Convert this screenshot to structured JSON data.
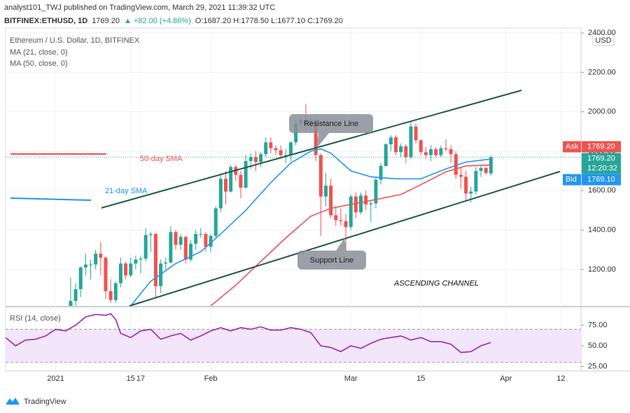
{
  "header": {
    "line1": "analyst101_TWJ published on TradingView.com, March 29, 2021 11:39:32 UTC",
    "symbol": "BITFINEX:ETHUSD, 1D",
    "last": "1769.20",
    "change": "▲ +82.00 (+4.86%)",
    "ohlc": "O:1687.20 H:1778.50 L:1677.10 C:1769.20"
  },
  "chart_data": [
    {
      "type": "candlestick",
      "title": "Ethereum / U.S. Dollar, 1D, BITFINEX",
      "currency": "USD",
      "up_color": "#26a69a",
      "down_color": "#ef5350",
      "x": [
        3,
        4,
        5,
        6,
        7,
        8,
        9,
        10,
        11,
        12,
        13,
        14,
        15,
        16,
        17,
        18,
        19,
        20,
        21,
        22,
        23,
        24,
        25,
        26,
        27,
        28,
        29,
        30,
        31,
        32,
        33,
        34,
        35,
        36,
        37,
        38,
        39,
        40,
        41,
        42,
        43,
        44,
        45,
        46,
        47,
        48,
        49,
        50,
        51,
        52,
        53,
        54,
        55,
        56,
        57,
        58,
        59,
        60,
        61,
        62,
        63,
        64,
        65,
        66,
        67,
        68,
        69,
        70,
        71,
        72,
        73,
        74,
        75,
        76,
        77,
        78,
        79,
        80,
        81,
        82,
        83,
        84,
        85,
        86,
        87
      ],
      "candles": [
        [
          1000,
          1160,
          950,
          1040
        ],
        [
          1040,
          1130,
          1000,
          1100
        ],
        [
          1100,
          1215,
          1060,
          1210
        ],
        [
          1210,
          1280,
          1170,
          1225
        ],
        [
          1225,
          1250,
          1150,
          1225
        ],
        [
          1225,
          1300,
          1200,
          1280
        ],
        [
          1280,
          1340,
          1170,
          1260
        ],
        [
          1260,
          1265,
          1050,
          1090
        ],
        [
          1090,
          1150,
          1030,
          1045
        ],
        [
          1045,
          1140,
          1030,
          1130
        ],
        [
          1130,
          1260,
          1110,
          1230
        ],
        [
          1230,
          1240,
          1150,
          1170
        ],
        [
          1170,
          1260,
          1160,
          1230
        ],
        [
          1230,
          1270,
          1200,
          1250
        ],
        [
          1250,
          1270,
          1180,
          1255
        ],
        [
          1255,
          1410,
          1240,
          1375
        ],
        [
          1375,
          1390,
          1290,
          1380
        ],
        [
          1380,
          1385,
          1060,
          1115
        ],
        [
          1115,
          1250,
          1080,
          1230
        ],
        [
          1230,
          1260,
          1200,
          1235
        ],
        [
          1235,
          1420,
          1230,
          1390
        ],
        [
          1390,
          1400,
          1300,
          1325
        ],
        [
          1325,
          1380,
          1300,
          1365
        ],
        [
          1365,
          1370,
          1230,
          1250
        ],
        [
          1250,
          1350,
          1240,
          1330
        ],
        [
          1330,
          1400,
          1300,
          1380
        ],
        [
          1380,
          1410,
          1360,
          1380
        ],
        [
          1380,
          1390,
          1290,
          1315
        ],
        [
          1315,
          1380,
          1290,
          1370
        ],
        [
          1370,
          1520,
          1360,
          1510
        ],
        [
          1510,
          1680,
          1490,
          1660
        ],
        [
          1660,
          1700,
          1530,
          1595
        ],
        [
          1595,
          1730,
          1590,
          1720
        ],
        [
          1720,
          1730,
          1650,
          1680
        ],
        [
          1680,
          1700,
          1560,
          1615
        ],
        [
          1615,
          1780,
          1610,
          1750
        ],
        [
          1750,
          1790,
          1710,
          1770
        ],
        [
          1770,
          1800,
          1700,
          1745
        ],
        [
          1745,
          1795,
          1720,
          1785
        ],
        [
          1785,
          1870,
          1770,
          1845
        ],
        [
          1845,
          1870,
          1790,
          1815
        ],
        [
          1815,
          1830,
          1780,
          1805
        ],
        [
          1805,
          1830,
          1760,
          1780
        ],
        [
          1780,
          1810,
          1740,
          1780
        ],
        [
          1780,
          1850,
          1750,
          1845
        ],
        [
          1845,
          1960,
          1830,
          1940
        ],
        [
          1940,
          1970,
          1920,
          1960
        ],
        [
          1960,
          2040,
          1900,
          1935
        ],
        [
          1935,
          1975,
          1900,
          1960
        ],
        [
          1960,
          1970,
          1750,
          1780
        ],
        [
          1780,
          1790,
          1370,
          1570
        ],
        [
          1570,
          1690,
          1520,
          1625
        ],
        [
          1625,
          1660,
          1460,
          1475
        ],
        [
          1475,
          1520,
          1420,
          1450
        ],
        [
          1450,
          1510,
          1420,
          1445
        ],
        [
          1445,
          1480,
          1300,
          1415
        ],
        [
          1415,
          1580,
          1400,
          1570
        ],
        [
          1570,
          1590,
          1460,
          1490
        ],
        [
          1490,
          1590,
          1480,
          1575
        ],
        [
          1575,
          1600,
          1500,
          1530
        ],
        [
          1530,
          1550,
          1440,
          1535
        ],
        [
          1535,
          1670,
          1510,
          1655
        ],
        [
          1655,
          1740,
          1630,
          1725
        ],
        [
          1725,
          1840,
          1720,
          1835
        ],
        [
          1835,
          1880,
          1800,
          1870
        ],
        [
          1870,
          1880,
          1780,
          1795
        ],
        [
          1795,
          1840,
          1770,
          1825
        ],
        [
          1825,
          1835,
          1740,
          1770
        ],
        [
          1770,
          1950,
          1760,
          1925
        ],
        [
          1925,
          1940,
          1840,
          1855
        ],
        [
          1855,
          1860,
          1780,
          1795
        ],
        [
          1795,
          1820,
          1760,
          1780
        ],
        [
          1780,
          1830,
          1750,
          1810
        ],
        [
          1810,
          1820,
          1770,
          1780
        ],
        [
          1780,
          1830,
          1770,
          1815
        ],
        [
          1815,
          1860,
          1800,
          1810
        ],
        [
          1810,
          1830,
          1740,
          1785
        ],
        [
          1785,
          1800,
          1660,
          1680
        ],
        [
          1680,
          1720,
          1610,
          1670
        ],
        [
          1670,
          1700,
          1550,
          1585
        ],
        [
          1585,
          1620,
          1540,
          1595
        ],
        [
          1595,
          1720,
          1580,
          1700
        ],
        [
          1700,
          1730,
          1670,
          1715
        ],
        [
          1715,
          1720,
          1680,
          1690
        ],
        [
          1687.2,
          1778.5,
          1677.1,
          1769.2
        ]
      ],
      "series": [
        {
          "name": "MA (21, close, 0)",
          "color": "#2196f3",
          "x": [
            15,
            19,
            24,
            29,
            33,
            38,
            43,
            47,
            51,
            53,
            55,
            59,
            63,
            68,
            73,
            78,
            82,
            87
          ],
          "values": [
            1015,
            1140,
            1230,
            1290,
            1380,
            1500,
            1640,
            1740,
            1800,
            1812,
            1790,
            1700,
            1670,
            1660,
            1660,
            1710,
            1745,
            1760
          ]
        },
        {
          "name": "MA (50, close, 0)",
          "color": "#ef5350",
          "x": [
            31,
            36,
            41,
            46,
            51,
            55,
            59,
            64,
            69,
            73,
            78,
            82,
            87
          ],
          "values": [
            1015,
            1120,
            1240,
            1360,
            1470,
            1510,
            1530,
            1555,
            1580,
            1630,
            1695,
            1725,
            1730
          ]
        }
      ],
      "xlim": [
        -10,
        105
      ],
      "ylim": [
        1015,
        2425
      ],
      "xticks": [
        {
          "value": 0,
          "label": "2021"
        },
        17,
        {
          "value": 31,
          "label": "Feb"
        },
        15,
        {
          "value": 59,
          "label": "Mar"
        },
        {
          "value": 73,
          "label": "15"
        },
        {
          "value": 90,
          "label": "Apr"
        },
        {
          "value": 101,
          "label": "12"
        }
      ],
      "yticks": [
        {
          "value": 1200,
          "label": "1200.00"
        },
        {
          "value": 1400,
          "label": "1400.00"
        },
        {
          "value": 1600,
          "label": "1600.00"
        },
        {
          "value": 1800,
          "label": "1800.00"
        },
        {
          "value": 2000,
          "label": "2000.00"
        },
        {
          "value": 2200,
          "label": "2200.00"
        },
        {
          "value": 2400,
          "label": "2400.00"
        }
      ],
      "grid": true,
      "price_labels": {
        "ask_name": "Ask",
        "ask": {
          "value": 1769.2,
          "label": "1769.20"
        },
        "last": {
          "value": 1769.2,
          "label": "1769.20"
        },
        "countdown": "12:20:32",
        "bid_name": "Bid",
        "bid": {
          "value": 1769.1,
          "label": "1769.10"
        }
      },
      "annotations": {
        "sma50": "50-day SMA",
        "sma21": "21-day SMA",
        "resistance": "Resistance Line",
        "support": "Support Line",
        "pattern": "ASCENDING CHANNEL"
      }
    },
    {
      "type": "line",
      "title": "RSI (14, close)",
      "color": "#9c27b0",
      "x": [
        -10,
        -8,
        -6,
        -4,
        -2,
        0,
        2,
        4,
        6,
        8,
        10,
        11,
        12,
        13,
        15,
        17,
        19,
        21,
        23,
        25,
        27,
        29,
        31,
        33,
        35,
        37,
        39,
        41,
        43,
        45,
        47,
        49,
        51,
        53,
        55,
        57,
        59,
        61,
        63,
        65,
        67,
        69,
        71,
        73,
        75,
        77,
        79,
        81,
        83,
        85,
        87
      ],
      "values": [
        60,
        50,
        57,
        58,
        62,
        70,
        68,
        75,
        85,
        88,
        87,
        89,
        82,
        65,
        60,
        68,
        70,
        58,
        62,
        65,
        57,
        62,
        68,
        72,
        68,
        72,
        70,
        73,
        69,
        69,
        72,
        70,
        66,
        50,
        48,
        43,
        50,
        47,
        53,
        58,
        60,
        62,
        57,
        60,
        55,
        55,
        52,
        42,
        43,
        50,
        54
      ],
      "ylim": [
        19.5,
        95.8
      ],
      "band": [
        30,
        70
      ],
      "yticks": [
        {
          "value": 25,
          "label": "25.00"
        },
        {
          "value": 50,
          "label": "50.00"
        },
        {
          "value": 75,
          "label": "75.00"
        }
      ]
    }
  ],
  "footer": "TradingView"
}
